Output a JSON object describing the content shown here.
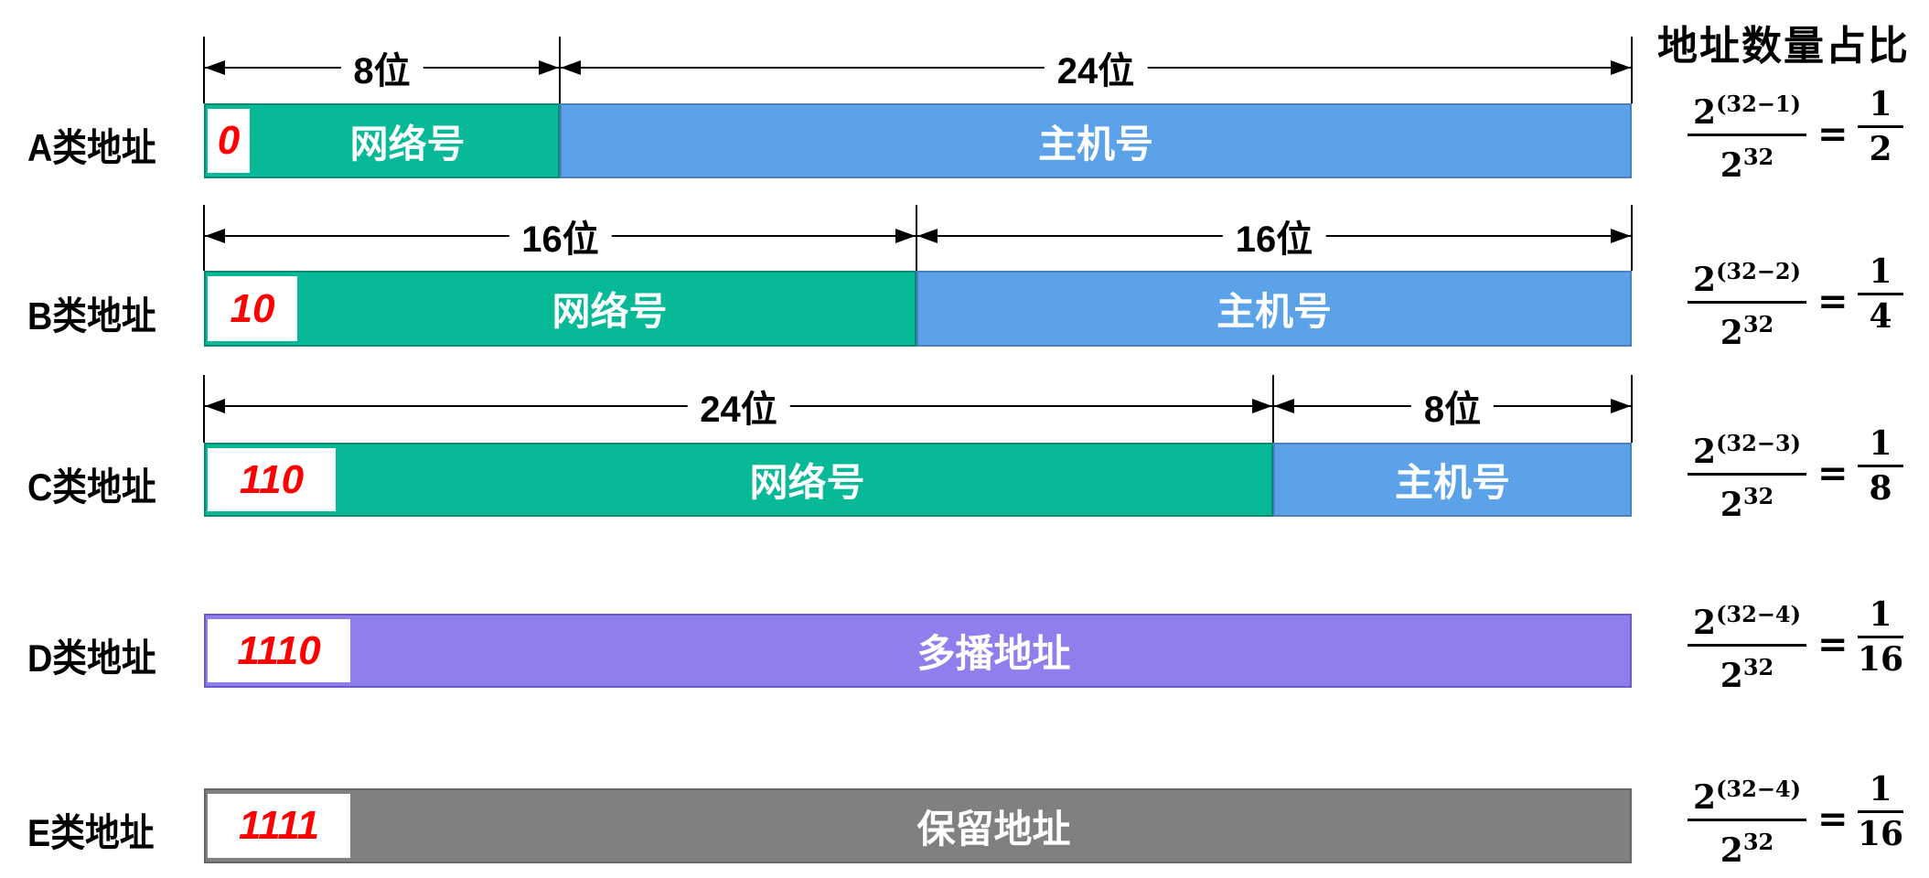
{
  "header": {
    "title": "地址数量占比"
  },
  "rows": [
    {
      "label": "A类地址",
      "prefix": "0",
      "segments": [
        {
          "text": "网络号",
          "type": "net"
        },
        {
          "text": "主机号",
          "type": "host"
        }
      ],
      "dims": [
        "8位",
        "24位"
      ],
      "formula": {
        "num_base": "2",
        "num_exp": "(32−1)",
        "den_base": "2",
        "den_exp": "32",
        "eq": "=",
        "res_num": "1",
        "res_den": "2"
      }
    },
    {
      "label": "B类地址",
      "prefix": "10",
      "segments": [
        {
          "text": "网络号",
          "type": "net"
        },
        {
          "text": "主机号",
          "type": "host"
        }
      ],
      "dims": [
        "16位",
        "16位"
      ],
      "formula": {
        "num_base": "2",
        "num_exp": "(32−2)",
        "den_base": "2",
        "den_exp": "32",
        "eq": "=",
        "res_num": "1",
        "res_den": "4"
      }
    },
    {
      "label": "C类地址",
      "prefix": "110",
      "segments": [
        {
          "text": "网络号",
          "type": "net"
        },
        {
          "text": "主机号",
          "type": "host"
        }
      ],
      "dims": [
        "24位",
        "8位"
      ],
      "formula": {
        "num_base": "2",
        "num_exp": "(32−3)",
        "den_base": "2",
        "den_exp": "32",
        "eq": "=",
        "res_num": "1",
        "res_den": "8"
      }
    },
    {
      "label": "D类地址",
      "prefix": "1110",
      "segments": [
        {
          "text": "多播地址",
          "type": "multi"
        }
      ],
      "dims": [],
      "formula": {
        "num_base": "2",
        "num_exp": "(32−4)",
        "den_base": "2",
        "den_exp": "32",
        "eq": "=",
        "res_num": "1",
        "res_den": "16"
      }
    },
    {
      "label": "E类地址",
      "prefix": "1111",
      "segments": [
        {
          "text": "保留地址",
          "type": "res"
        }
      ],
      "dims": [],
      "formula": {
        "num_base": "2",
        "num_exp": "(32−4)",
        "den_base": "2",
        "den_exp": "32",
        "eq": "=",
        "res_num": "1",
        "res_den": "16"
      }
    }
  ],
  "colors": {
    "network": "#08b998",
    "host": "#5ba2e8",
    "multicast": "#8e7fec",
    "reserved": "#808080",
    "prefix": "#ff0000"
  }
}
